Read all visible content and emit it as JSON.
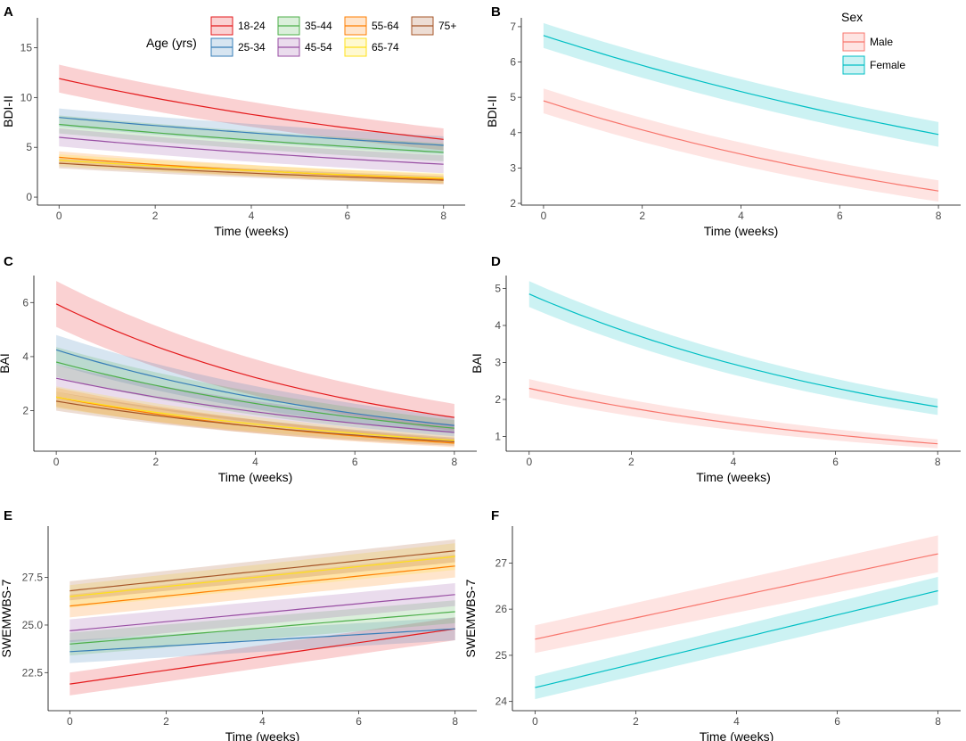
{
  "colors": {
    "18-24": "#E41A1C",
    "25-34": "#377EB8",
    "35-44": "#4DAF4A",
    "45-54": "#984EA3",
    "55-64": "#FF7F00",
    "65-74": "#FFE119",
    "75+": "#A65628",
    "Male": "#F8766D",
    "Female": "#00BFC4"
  },
  "age_legend": {
    "title": "Age (yrs)",
    "items": [
      "18-24",
      "25-34",
      "35-44",
      "45-54",
      "55-64",
      "65-74",
      "75+"
    ]
  },
  "sex_legend": {
    "title": "Sex",
    "items": [
      "Male",
      "Female"
    ]
  },
  "chart_data": [
    {
      "label": "A",
      "type": "line",
      "xlabel": "Time (weeks)",
      "ylabel": "BDI-II",
      "xlim": [
        -0.45,
        8.45
      ],
      "ylim": [
        -0.8,
        18
      ],
      "xticks": [
        0,
        2,
        4,
        6,
        8
      ],
      "yticks": [
        0,
        5,
        10,
        15
      ],
      "grid": false,
      "legend": "age",
      "series": [
        {
          "name": "18-24",
          "start": 11.9,
          "end": 5.8,
          "ci_start": 1.4,
          "ci_end": 1.1
        },
        {
          "name": "25-34",
          "start": 8.0,
          "end": 5.2,
          "ci_start": 0.9,
          "ci_end": 0.9
        },
        {
          "name": "35-44",
          "start": 7.3,
          "end": 4.5,
          "ci_start": 0.9,
          "ci_end": 0.9
        },
        {
          "name": "45-54",
          "start": 6.0,
          "end": 3.3,
          "ci_start": 0.9,
          "ci_end": 0.9
        },
        {
          "name": "55-64",
          "start": 4.0,
          "end": 1.8,
          "ci_start": 0.6,
          "ci_end": 0.5
        },
        {
          "name": "65-74",
          "start": 3.7,
          "end": 1.9,
          "ci_start": 0.6,
          "ci_end": 0.5
        },
        {
          "name": "75+",
          "start": 3.4,
          "end": 1.7,
          "ci_start": 0.5,
          "ci_end": 0.4
        }
      ]
    },
    {
      "label": "B",
      "type": "line",
      "xlabel": "Time (weeks)",
      "ylabel": "BDI-II",
      "xlim": [
        -0.45,
        8.45
      ],
      "ylim": [
        1.95,
        7.25
      ],
      "xticks": [
        0,
        2,
        4,
        6,
        8
      ],
      "yticks": [
        2,
        3,
        4,
        5,
        6,
        7
      ],
      "grid": false,
      "legend": "sex",
      "series": [
        {
          "name": "Male",
          "start": 4.9,
          "end": 2.35,
          "ci_start": 0.35,
          "ci_end": 0.3
        },
        {
          "name": "Female",
          "start": 6.75,
          "end": 3.95,
          "ci_start": 0.35,
          "ci_end": 0.35
        }
      ]
    },
    {
      "label": "C",
      "type": "line",
      "xlabel": "Time (weeks)",
      "ylabel": "BAI",
      "xlim": [
        -0.45,
        8.45
      ],
      "ylim": [
        0.5,
        7.0
      ],
      "xticks": [
        0,
        2,
        4,
        6,
        8
      ],
      "yticks": [
        2,
        4,
        6
      ],
      "grid": false,
      "legend": "none",
      "series": [
        {
          "name": "18-24",
          "start": 5.95,
          "end": 1.75,
          "ci_start": 0.85,
          "ci_end": 0.5
        },
        {
          "name": "25-34",
          "start": 4.25,
          "end": 1.45,
          "ci_start": 0.55,
          "ci_end": 0.3
        },
        {
          "name": "35-44",
          "start": 3.8,
          "end": 1.35,
          "ci_start": 0.55,
          "ci_end": 0.3
        },
        {
          "name": "45-54",
          "start": 3.2,
          "end": 1.2,
          "ci_start": 0.5,
          "ci_end": 0.3
        },
        {
          "name": "55-64",
          "start": 2.5,
          "end": 0.8,
          "ci_start": 0.35,
          "ci_end": 0.15
        },
        {
          "name": "65-74",
          "start": 2.5,
          "end": 0.9,
          "ci_start": 0.4,
          "ci_end": 0.15
        },
        {
          "name": "75+",
          "start": 2.35,
          "end": 0.85,
          "ci_start": 0.35,
          "ci_end": 0.15
        }
      ]
    },
    {
      "label": "D",
      "type": "line",
      "xlabel": "Time (weeks)",
      "ylabel": "BAI",
      "xlim": [
        -0.45,
        8.45
      ],
      "ylim": [
        0.6,
        5.35
      ],
      "xticks": [
        0,
        2,
        4,
        6,
        8
      ],
      "yticks": [
        1,
        2,
        3,
        4,
        5
      ],
      "grid": false,
      "legend": "none",
      "series": [
        {
          "name": "Male",
          "start": 2.3,
          "end": 0.8,
          "ci_start": 0.25,
          "ci_end": 0.12
        },
        {
          "name": "Female",
          "start": 4.85,
          "end": 1.8,
          "ci_start": 0.35,
          "ci_end": 0.22
        }
      ]
    },
    {
      "label": "E",
      "type": "line",
      "xlabel": "Time (weeks)",
      "ylabel": "SWEMWBS-7",
      "xlim": [
        -0.45,
        8.45
      ],
      "ylim": [
        20.5,
        30.2
      ],
      "xticks": [
        0,
        2,
        4,
        6,
        8
      ],
      "yticks": [
        22.5,
        25.0,
        27.5
      ],
      "grid": false,
      "legend": "none",
      "series": [
        {
          "name": "18-24",
          "start": 21.9,
          "end": 24.8,
          "ci_start": 0.6,
          "ci_end": 0.6
        },
        {
          "name": "25-34",
          "start": 23.6,
          "end": 24.8,
          "ci_start": 0.6,
          "ci_end": 0.6
        },
        {
          "name": "35-44",
          "start": 24.0,
          "end": 25.7,
          "ci_start": 0.6,
          "ci_end": 0.6
        },
        {
          "name": "45-54",
          "start": 24.7,
          "end": 26.6,
          "ci_start": 0.6,
          "ci_end": 0.6
        },
        {
          "name": "55-64",
          "start": 26.0,
          "end": 28.1,
          "ci_start": 0.6,
          "ci_end": 0.6
        },
        {
          "name": "65-74",
          "start": 26.5,
          "end": 28.6,
          "ci_start": 0.6,
          "ci_end": 0.7
        },
        {
          "name": "75+",
          "start": 26.8,
          "end": 28.9,
          "ci_start": 0.5,
          "ci_end": 0.6
        }
      ]
    },
    {
      "label": "F",
      "type": "line",
      "xlabel": "Time (weeks)",
      "ylabel": "SWEMWBS-7",
      "xlim": [
        -0.45,
        8.45
      ],
      "ylim": [
        23.8,
        27.8
      ],
      "xticks": [
        0,
        2,
        4,
        6,
        8
      ],
      "yticks": [
        24,
        25,
        26,
        27
      ],
      "grid": false,
      "legend": "none",
      "series": [
        {
          "name": "Male",
          "start": 25.35,
          "end": 27.2,
          "ci_start": 0.3,
          "ci_end": 0.4
        },
        {
          "name": "Female",
          "start": 24.3,
          "end": 26.4,
          "ci_start": 0.25,
          "ci_end": 0.3
        }
      ]
    }
  ]
}
